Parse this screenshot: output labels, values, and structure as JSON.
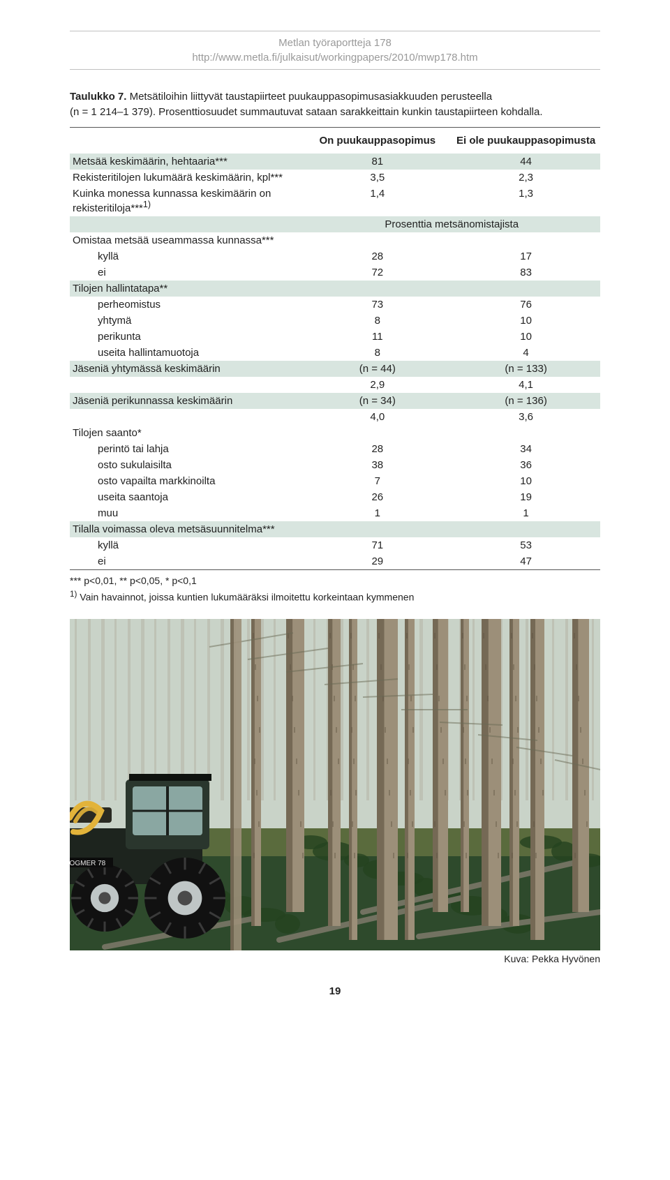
{
  "header": {
    "series": "Metlan työraportteja 178",
    "url": "http://www.metla.fi/julkaisut/workingpapers/2010/mwp178.htm"
  },
  "caption": {
    "label": "Taulukko 7.",
    "text_a": "Metsätiloihin liittyvät taustapiirteet puukauppasopimusasiakkuuden perusteella",
    "text_b": "(n = 1 214–1 379). Prosenttiosuudet summautuvat sataan sarakkeittain kunkin taustapiirteen kohdalla."
  },
  "table": {
    "col_headers": {
      "c2": "On puukauppa­sopimus",
      "c3": "Ei ole puukauppa­sopimusta"
    },
    "rows": [
      {
        "type": "data",
        "label": "Metsää keskimäärin, hehtaaria***",
        "v1": "81",
        "v2": "44",
        "band": true
      },
      {
        "type": "data",
        "label": "Rekisteritilojen lukumäärä keskimäärin, kpl***",
        "v1": "3,5",
        "v2": "2,3"
      },
      {
        "type": "data",
        "label": "Kuinka monessa kunnassa keskimäärin on rekisteritiloja***",
        "sup": "1)",
        "v1": "1,4",
        "v2": "1,3"
      },
      {
        "type": "subhead",
        "label": "Prosenttia metsänomistajista",
        "band": true
      },
      {
        "type": "section",
        "label": "Omistaa metsää useammassa kunnassa***"
      },
      {
        "type": "data",
        "label": "kyllä",
        "indent": true,
        "v1": "28",
        "v2": "17"
      },
      {
        "type": "data",
        "label": "ei",
        "indent": true,
        "v1": "72",
        "v2": "83"
      },
      {
        "type": "section",
        "label": "Tilojen hallintatapa**",
        "band": true
      },
      {
        "type": "data",
        "label": "perheomistus",
        "indent": true,
        "v1": "73",
        "v2": "76"
      },
      {
        "type": "data",
        "label": "yhtymä",
        "indent": true,
        "v1": "8",
        "v2": "10"
      },
      {
        "type": "data",
        "label": "perikunta",
        "indent": true,
        "v1": "11",
        "v2": "10"
      },
      {
        "type": "data",
        "label": "useita hallintamuotoja",
        "indent": true,
        "v1": "8",
        "v2": "4"
      },
      {
        "type": "data",
        "label": "Jäseniä yhtymässä keskimäärin",
        "v1": "(n = 44)",
        "v2": "(n = 133)",
        "band": true
      },
      {
        "type": "data",
        "label": "",
        "v1": "2,9",
        "v2": "4,1"
      },
      {
        "type": "data",
        "label": "Jäseniä perikunnassa keskimäärin",
        "v1": "(n = 34)",
        "v2": "(n = 136)",
        "band": true
      },
      {
        "type": "data",
        "label": "",
        "v1": "4,0",
        "v2": "3,6"
      },
      {
        "type": "section",
        "label": "Tilojen saanto*"
      },
      {
        "type": "data",
        "label": "perintö tai lahja",
        "indent": true,
        "v1": "28",
        "v2": "34"
      },
      {
        "type": "data",
        "label": "osto sukulaisilta",
        "indent": true,
        "v1": "38",
        "v2": "36"
      },
      {
        "type": "data",
        "label": "osto vapailta markkinoilta",
        "indent": true,
        "v1": "7",
        "v2": "10"
      },
      {
        "type": "data",
        "label": "useita saantoja",
        "indent": true,
        "v1": "26",
        "v2": "19"
      },
      {
        "type": "data",
        "label": "muu",
        "indent": true,
        "v1": "1",
        "v2": "1"
      },
      {
        "type": "section",
        "label": "Tilalla voimassa oleva metsäsuunnitelma***",
        "band": true
      },
      {
        "type": "data",
        "label": "kyllä",
        "indent": true,
        "v1": "71",
        "v2": "53"
      },
      {
        "type": "data",
        "label": "ei",
        "indent": true,
        "v1": "29",
        "v2": "47"
      }
    ]
  },
  "footnotes": {
    "sig": "*** p<0,01, ** p<0,05, * p<0,1",
    "note1_label": "1)",
    "note1_text": "Vain havainnot, joissa kuntien lukumääräksi ilmoitettu korkeintaan kymmenen"
  },
  "photo": {
    "credit": "Kuva: Pekka Hyvönen",
    "colors": {
      "sky": "#c9d3c8",
      "ground1": "#2e4a2c",
      "ground2": "#5a6b3d",
      "trunk_light": "#9c8f79",
      "trunk_dark": "#5c503e",
      "tractor_body": "#1d241e",
      "tractor_cab": "#2a362d",
      "tractor_window": "#8aa7a2",
      "wheel": "#111111",
      "wheel_hub": "#bfc6c6",
      "arm": "#e2b33a"
    }
  },
  "pagenum": "19"
}
